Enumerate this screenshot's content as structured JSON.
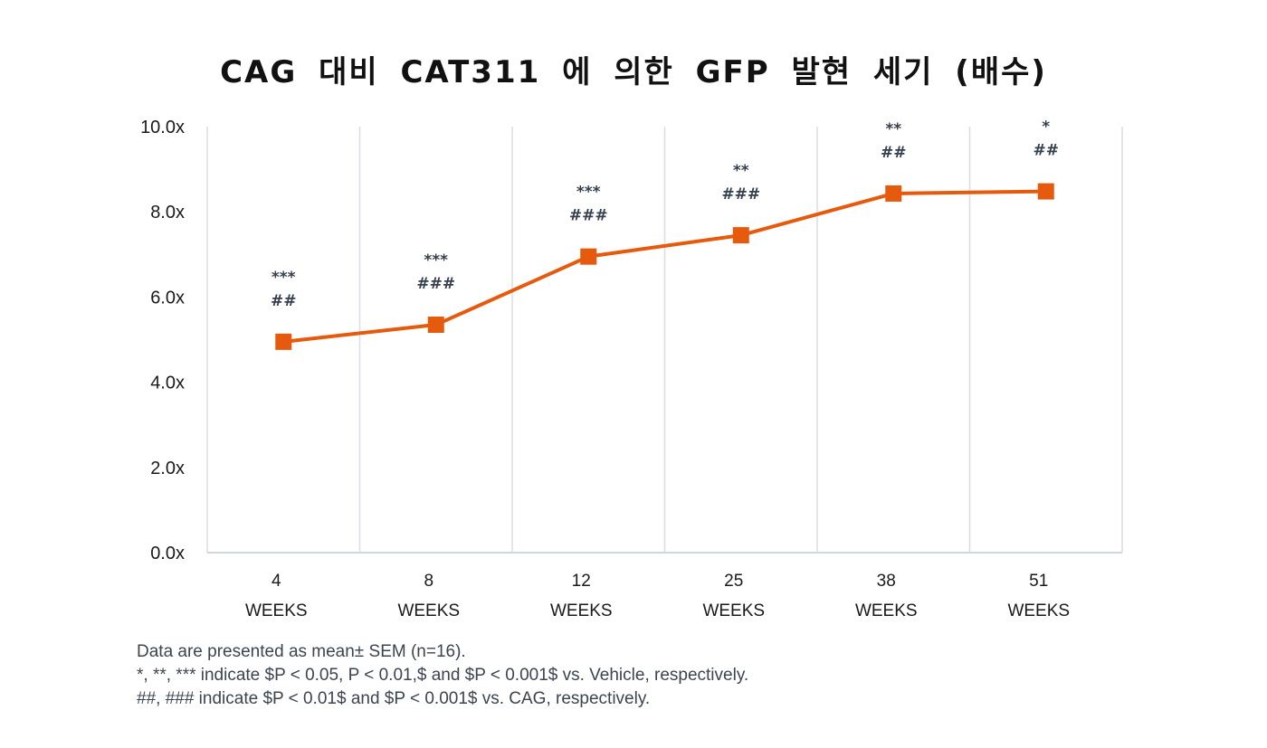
{
  "chart_data": {
    "type": "line",
    "title": "CAG 대비 CAT311 에 의한 GFP 발현 세기 (배수)",
    "categories": [
      {
        "num": "4",
        "unit": "WEEKS"
      },
      {
        "num": "8",
        "unit": "WEEKS"
      },
      {
        "num": "12",
        "unit": "WEEKS"
      },
      {
        "num": "25",
        "unit": "WEEKS"
      },
      {
        "num": "38",
        "unit": "WEEKS"
      },
      {
        "num": "51",
        "unit": "WEEKS"
      }
    ],
    "series": [
      {
        "values": [
          4.95,
          5.35,
          6.95,
          7.45,
          8.43,
          8.48
        ]
      }
    ],
    "ylim": [
      0,
      10
    ],
    "yticks": [
      "0.0x",
      "2.0x",
      "4.0x",
      "6.0x",
      "8.0x",
      "10.0x"
    ],
    "annotations": [
      {
        "vehicle": "***",
        "cag": "##"
      },
      {
        "vehicle": "***",
        "cag": "###"
      },
      {
        "vehicle": "***",
        "cag": "###"
      },
      {
        "vehicle": "**",
        "cag": "###"
      },
      {
        "vehicle": "**",
        "cag": "##"
      },
      {
        "vehicle": "*",
        "cag": "##"
      }
    ],
    "grid": "vertical",
    "colors": {
      "line": "#e55a0c",
      "grid": "#d9dee3",
      "axis": "#d0d6dc"
    }
  },
  "footnotes": [
    "Data are presented as mean± SEM (n=16).",
    "*, **, *** indicate $P < 0.05, P < 0.01,$ and $P < 0.001$ vs. Vehicle, respectively.",
    "##, ### indicate $P < 0.01$ and $P < 0.001$ vs. CAG, respectively."
  ]
}
